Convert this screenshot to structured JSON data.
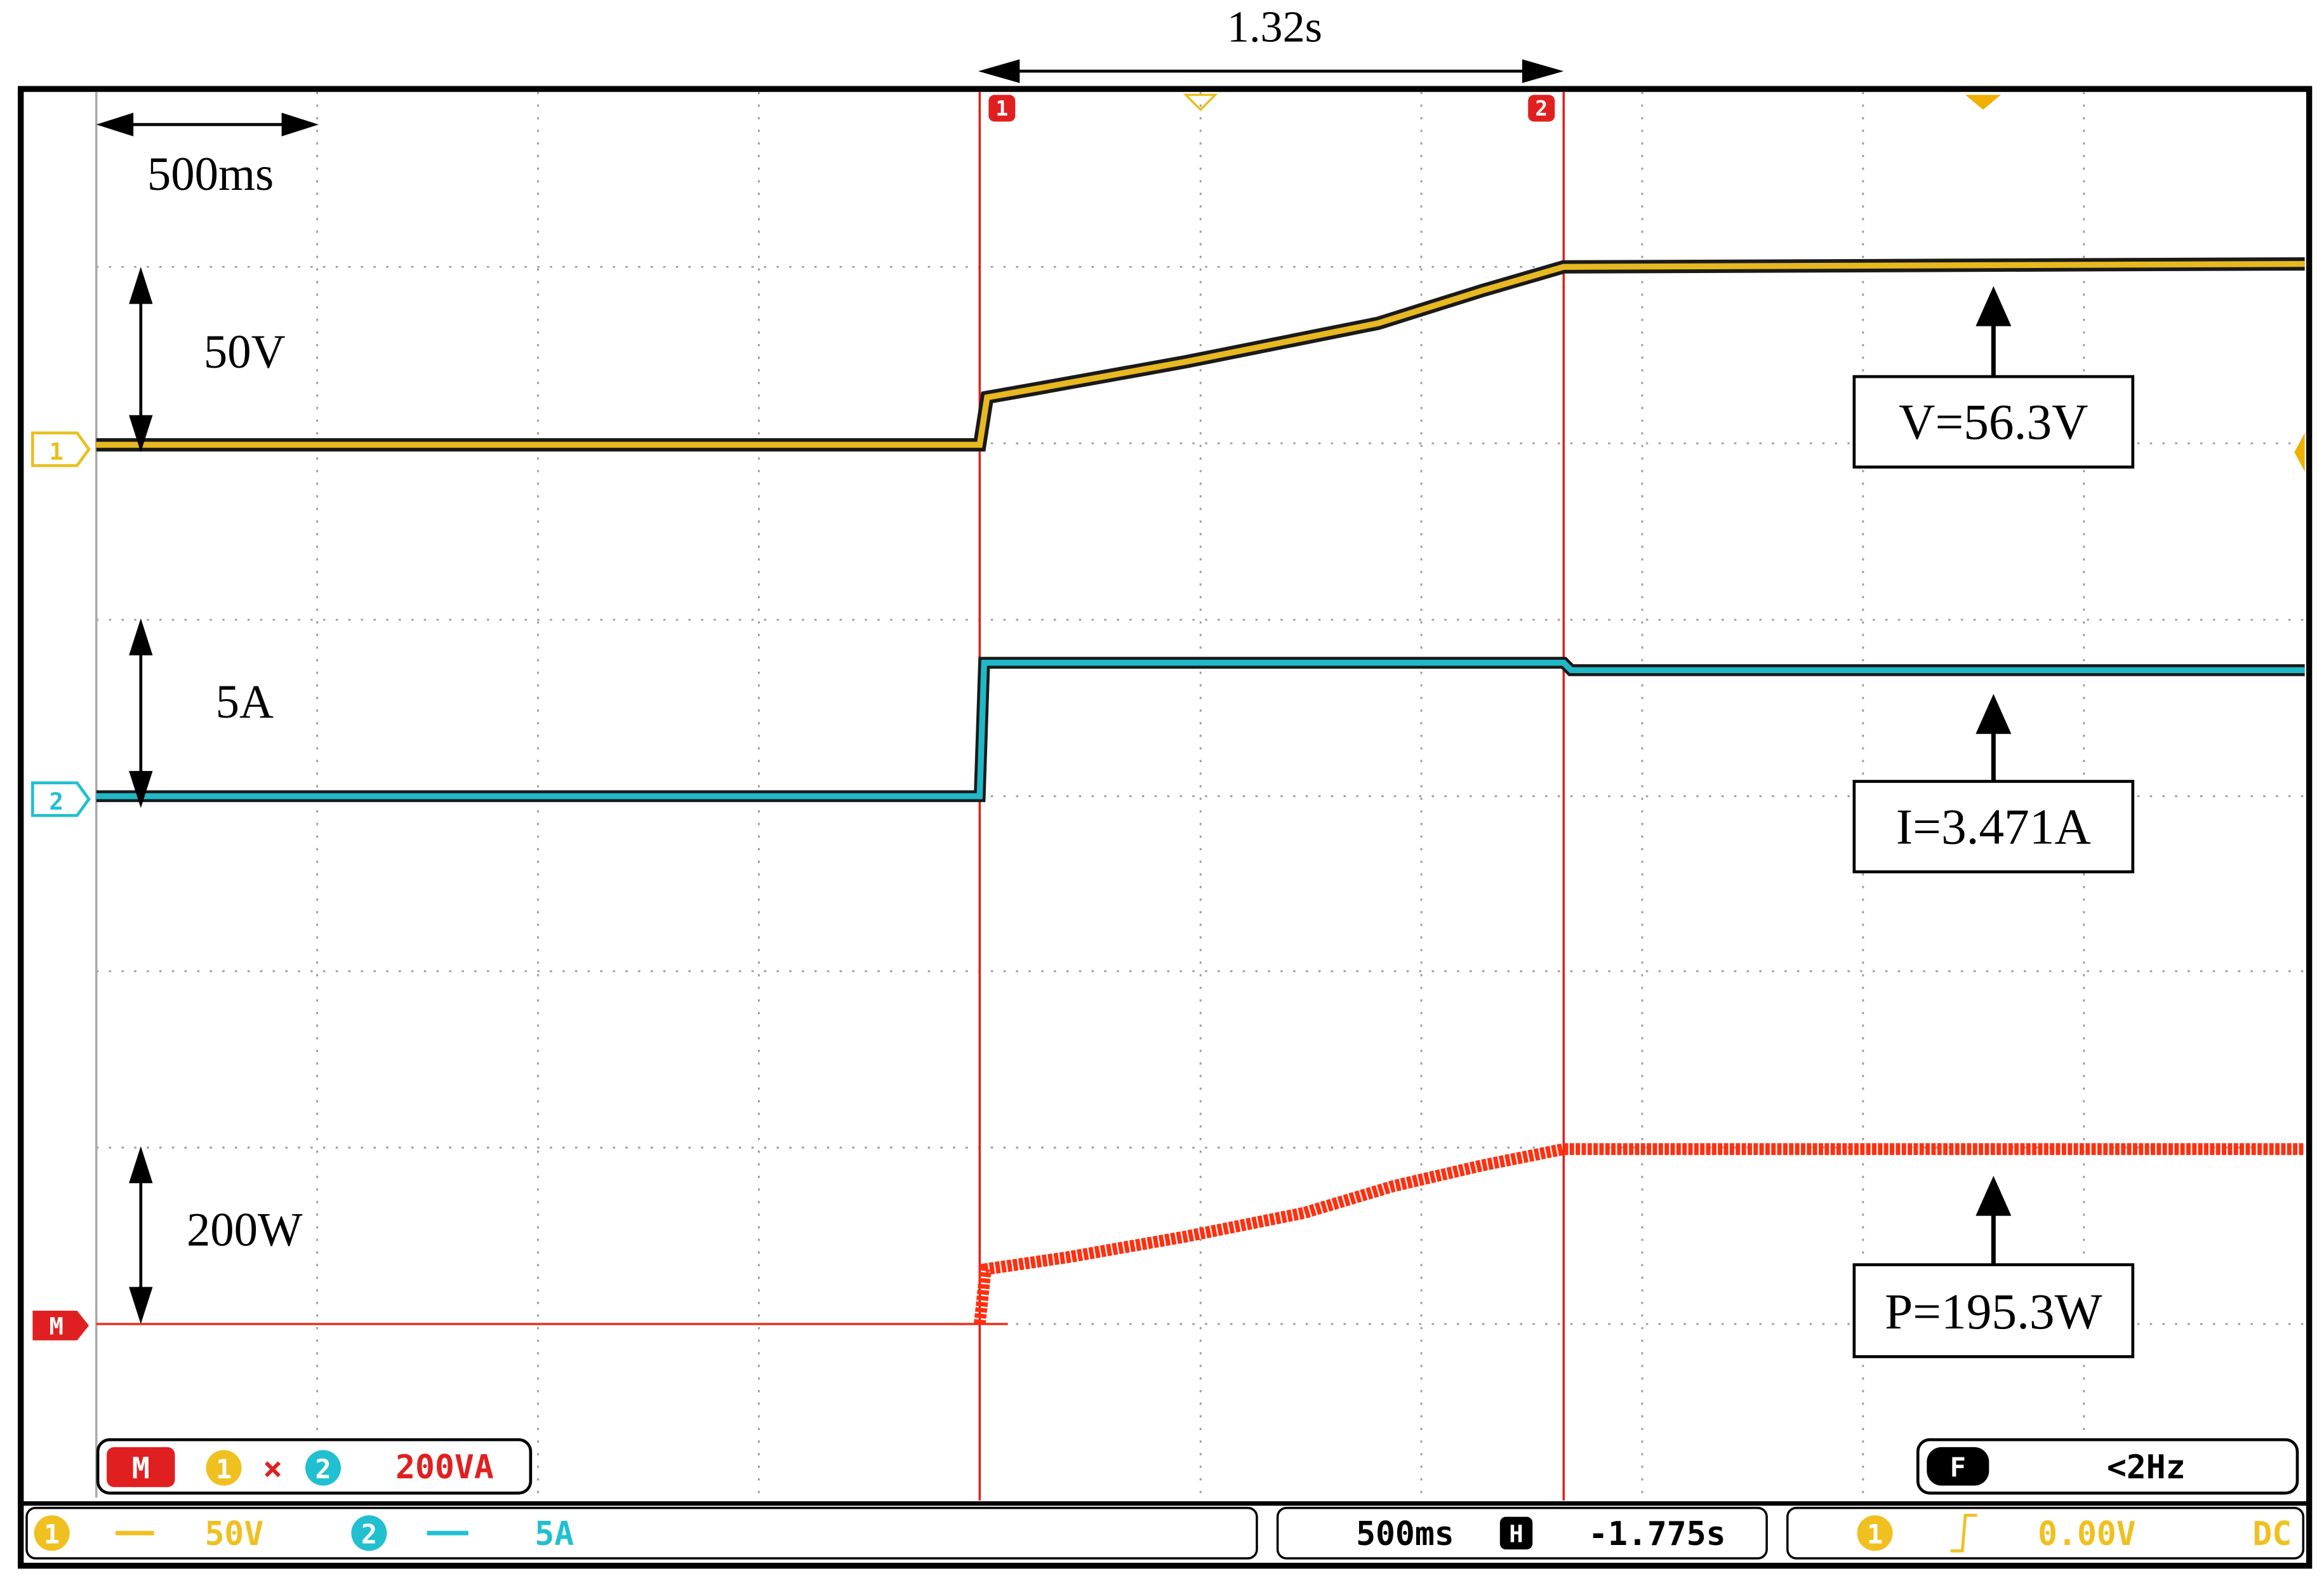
{
  "annotations": {
    "cursor_span": "1.32s",
    "time_div": "500ms",
    "volt_div": "50V",
    "amp_div": "5A",
    "power_div": "200W",
    "voltage": "V=56.3V",
    "current": "I=3.471A",
    "power": "P=195.3W"
  },
  "screen": {
    "channel_markers": [
      "1",
      "2",
      "M"
    ],
    "cursor_labels": [
      "1",
      "2"
    ],
    "math_box": {
      "label": "M",
      "ch_a": "1",
      "op": "×",
      "ch_b": "2",
      "scale": "200VA"
    },
    "freq_box": {
      "label": "F",
      "value": "<2Hz"
    },
    "status_bar": {
      "ch1": "1",
      "ch1_scale": "50V",
      "ch2": "2",
      "ch2_scale": "5A",
      "timebase": "500ms",
      "h_label": "H",
      "position": "-1.775s",
      "trig_ch": "1",
      "trig_level": "0.00V",
      "coupling": "DC"
    }
  }
}
